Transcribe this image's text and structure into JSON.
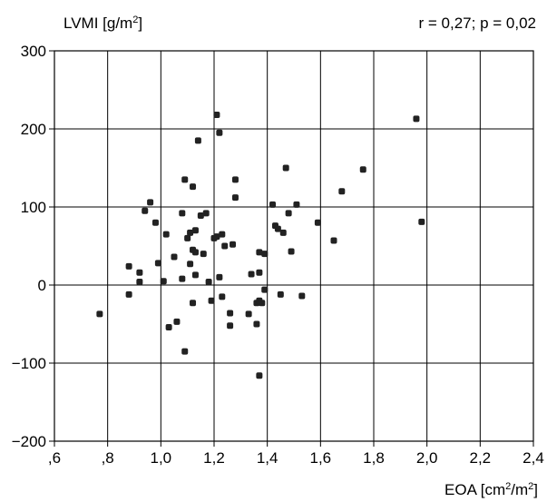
{
  "chart_data": {
    "type": "scatter",
    "title": "",
    "annotation": "r = 0,27; p = 0,02",
    "ylabel": {
      "pre": "LVMI [g/m",
      "sup": "2",
      "post": "]"
    },
    "xlabel": {
      "pre": "EOA [cm",
      "sup1": "2",
      "mid": "/m",
      "sup2": "2",
      "post": "]"
    },
    "xlim": [
      0.6,
      2.4
    ],
    "ylim": [
      -200,
      300
    ],
    "xticks": [
      {
        "v": 0.6,
        "label": ",6"
      },
      {
        "v": 0.8,
        "label": ",8"
      },
      {
        "v": 1.0,
        "label": "1,0"
      },
      {
        "v": 1.2,
        "label": "1,2"
      },
      {
        "v": 1.4,
        "label": "1,4"
      },
      {
        "v": 1.6,
        "label": "1,6"
      },
      {
        "v": 1.8,
        "label": "1,8"
      },
      {
        "v": 2.0,
        "label": "2,0"
      },
      {
        "v": 2.2,
        "label": "2,2"
      },
      {
        "v": 2.4,
        "label": "2,4"
      }
    ],
    "yticks": [
      {
        "v": -200,
        "label": "−200"
      },
      {
        "v": -100,
        "label": "−100"
      },
      {
        "v": 0,
        "label": "0"
      },
      {
        "v": 100,
        "label": "100"
      },
      {
        "v": 200,
        "label": "200"
      },
      {
        "v": 300,
        "label": "300"
      }
    ],
    "grid": true,
    "marker_color": "#222222",
    "points": [
      [
        0.77,
        -37
      ],
      [
        0.88,
        24
      ],
      [
        0.88,
        -12
      ],
      [
        0.92,
        16
      ],
      [
        0.92,
        4
      ],
      [
        0.94,
        95
      ],
      [
        0.96,
        106
      ],
      [
        0.98,
        80
      ],
      [
        0.99,
        28
      ],
      [
        1.01,
        5
      ],
      [
        1.02,
        65
      ],
      [
        1.03,
        -54
      ],
      [
        1.05,
        36
      ],
      [
        1.06,
        -47
      ],
      [
        1.08,
        92
      ],
      [
        1.08,
        8
      ],
      [
        1.09,
        135
      ],
      [
        1.09,
        -85
      ],
      [
        1.1,
        60
      ],
      [
        1.11,
        27
      ],
      [
        1.11,
        67
      ],
      [
        1.12,
        126
      ],
      [
        1.12,
        45
      ],
      [
        1.12,
        -23
      ],
      [
        1.13,
        42
      ],
      [
        1.13,
        70
      ],
      [
        1.13,
        13
      ],
      [
        1.14,
        185
      ],
      [
        1.15,
        89
      ],
      [
        1.16,
        40
      ],
      [
        1.17,
        92
      ],
      [
        1.18,
        4
      ],
      [
        1.19,
        -20
      ],
      [
        1.2,
        60
      ],
      [
        1.21,
        218
      ],
      [
        1.21,
        62
      ],
      [
        1.22,
        195
      ],
      [
        1.22,
        10
      ],
      [
        1.23,
        65
      ],
      [
        1.23,
        -15
      ],
      [
        1.24,
        50
      ],
      [
        1.26,
        -36
      ],
      [
        1.26,
        -52
      ],
      [
        1.27,
        52
      ],
      [
        1.28,
        135
      ],
      [
        1.28,
        112
      ],
      [
        1.33,
        -37
      ],
      [
        1.34,
        14
      ],
      [
        1.36,
        -23
      ],
      [
        1.36,
        -50
      ],
      [
        1.37,
        42
      ],
      [
        1.37,
        16
      ],
      [
        1.37,
        -20
      ],
      [
        1.37,
        -116
      ],
      [
        1.38,
        -23
      ],
      [
        1.39,
        40
      ],
      [
        1.39,
        -6
      ],
      [
        1.42,
        103
      ],
      [
        1.43,
        76
      ],
      [
        1.44,
        72
      ],
      [
        1.45,
        -12
      ],
      [
        1.46,
        67
      ],
      [
        1.47,
        150
      ],
      [
        1.48,
        92
      ],
      [
        1.49,
        43
      ],
      [
        1.51,
        103
      ],
      [
        1.53,
        -14
      ],
      [
        1.59,
        80
      ],
      [
        1.65,
        57
      ],
      [
        1.68,
        120
      ],
      [
        1.76,
        148
      ],
      [
        1.96,
        213
      ],
      [
        1.98,
        81
      ]
    ]
  }
}
